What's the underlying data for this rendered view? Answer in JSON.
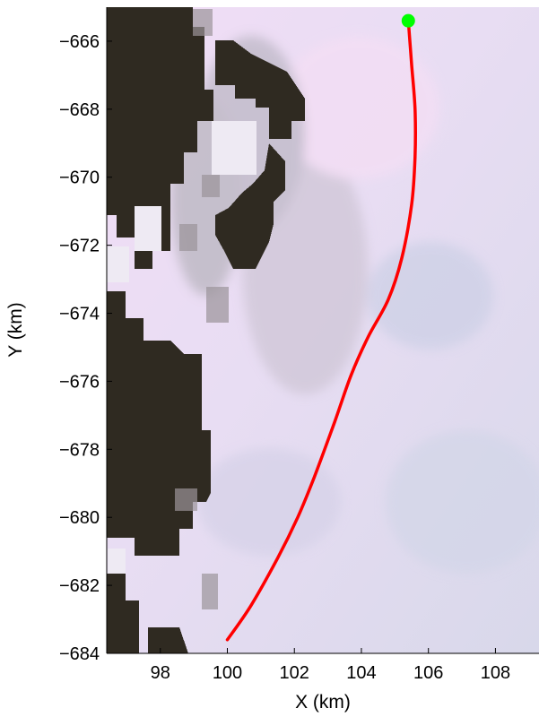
{
  "chart_data": {
    "type": "line",
    "title": "",
    "xlabel": "X (km)",
    "ylabel": "Y (km)",
    "xlim": [
      96.4,
      109.3
    ],
    "ylim": [
      -684.0,
      -665.0
    ],
    "xticks": [
      98,
      100,
      102,
      104,
      106,
      108
    ],
    "yticks": [
      -666,
      -668,
      -670,
      -672,
      -674,
      -676,
      -678,
      -680,
      -682,
      -684
    ],
    "xtick_labels": [
      "98",
      "100",
      "102",
      "104",
      "106",
      "108"
    ],
    "ytick_labels": [
      "−666",
      "−668",
      "−670",
      "−672",
      "−674",
      "−676",
      "−678",
      "−680",
      "−682",
      "−684"
    ],
    "grid": false,
    "legend": "none",
    "background": "satellite imagery: dark rock outcrops on the left half, pale bluish-white ice elsewhere",
    "series": [
      {
        "color": "#ff0000",
        "x": [
          100.0,
          100.7,
          101.5,
          102.1,
          102.6,
          103.2,
          103.7,
          104.2,
          104.8,
          105.2,
          105.5,
          105.6,
          105.6,
          105.5,
          105.4
        ],
        "y": [
          -683.6,
          -682.6,
          -681.2,
          -680.0,
          -678.8,
          -677.2,
          -675.8,
          -674.7,
          -673.6,
          -672.4,
          -670.8,
          -669.4,
          -668.0,
          -666.7,
          -665.4
        ]
      }
    ],
    "markers": [
      {
        "color": "#00ff00",
        "shape": "circle",
        "x": 105.4,
        "y": -665.4
      }
    ]
  }
}
